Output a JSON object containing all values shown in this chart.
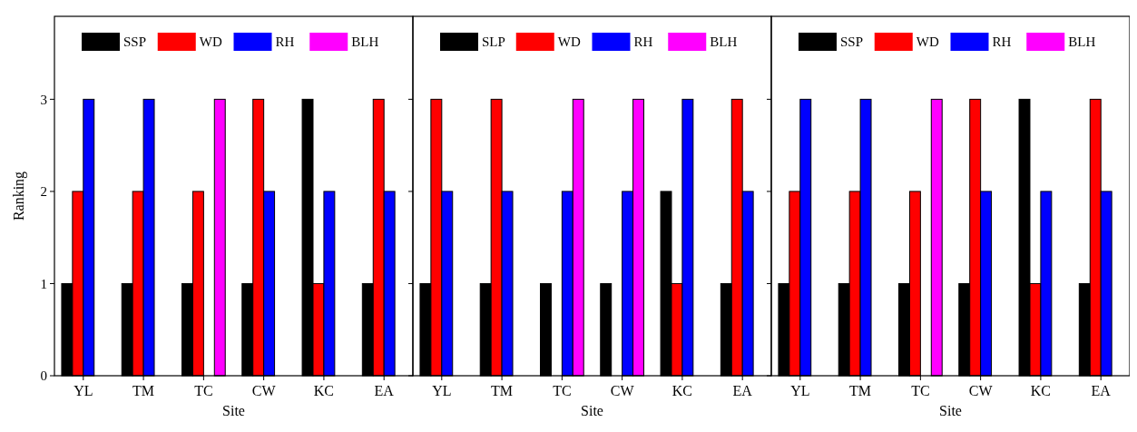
{
  "chart_data": [
    {
      "type": "bar",
      "ylabel": "Ranking",
      "xlabel": "Site",
      "categories": [
        "YL",
        "TM",
        "TC",
        "CW",
        "KC",
        "EA"
      ],
      "ylim": [
        0,
        3.9
      ],
      "yticks": [
        0,
        1,
        2,
        3
      ],
      "legend": "top",
      "grid": false,
      "series": [
        {
          "name": "SSP",
          "color": "#000000",
          "values": [
            1,
            1,
            1,
            1,
            3,
            1
          ]
        },
        {
          "name": "WD",
          "color": "#ff0000",
          "values": [
            2,
            2,
            2,
            3,
            1,
            3
          ]
        },
        {
          "name": "RH",
          "color": "#0000ff",
          "values": [
            3,
            3,
            null,
            2,
            2,
            2
          ]
        },
        {
          "name": "BLH",
          "color": "#ff00ff",
          "values": [
            null,
            null,
            3,
            null,
            null,
            null
          ]
        }
      ]
    },
    {
      "type": "bar",
      "xlabel": "Site",
      "categories": [
        "YL",
        "TM",
        "TC",
        "CW",
        "KC",
        "EA"
      ],
      "ylim": [
        0,
        3.9
      ],
      "yticks": [
        0,
        1,
        2,
        3
      ],
      "tick_labels": "x",
      "legend": "top",
      "grid": false,
      "series": [
        {
          "name": "SLP",
          "color": "#000000",
          "values": [
            1,
            1,
            1,
            1,
            2,
            1
          ]
        },
        {
          "name": "WD",
          "color": "#ff0000",
          "values": [
            3,
            3,
            null,
            null,
            1,
            3
          ]
        },
        {
          "name": "RH",
          "color": "#0000ff",
          "values": [
            2,
            2,
            2,
            2,
            3,
            2
          ]
        },
        {
          "name": "BLH",
          "color": "#ff00ff",
          "values": [
            null,
            null,
            3,
            3,
            null,
            null
          ]
        }
      ]
    },
    {
      "type": "bar",
      "xlabel": "Site",
      "categories": [
        "YL",
        "TM",
        "TC",
        "CW",
        "KC",
        "EA"
      ],
      "ylim": [
        0,
        3.9
      ],
      "yticks": [
        0,
        1,
        2,
        3
      ],
      "tick_labels": "x",
      "legend": "top",
      "grid": false,
      "series": [
        {
          "name": "SSP",
          "color": "#000000",
          "values": [
            1,
            1,
            1,
            1,
            3,
            1
          ]
        },
        {
          "name": "WD",
          "color": "#ff0000",
          "values": [
            2,
            2,
            2,
            3,
            1,
            3
          ]
        },
        {
          "name": "RH",
          "color": "#0000ff",
          "values": [
            3,
            3,
            null,
            2,
            2,
            2
          ]
        },
        {
          "name": "BLH",
          "color": "#ff00ff",
          "values": [
            null,
            null,
            3,
            null,
            null,
            null
          ]
        }
      ]
    }
  ]
}
